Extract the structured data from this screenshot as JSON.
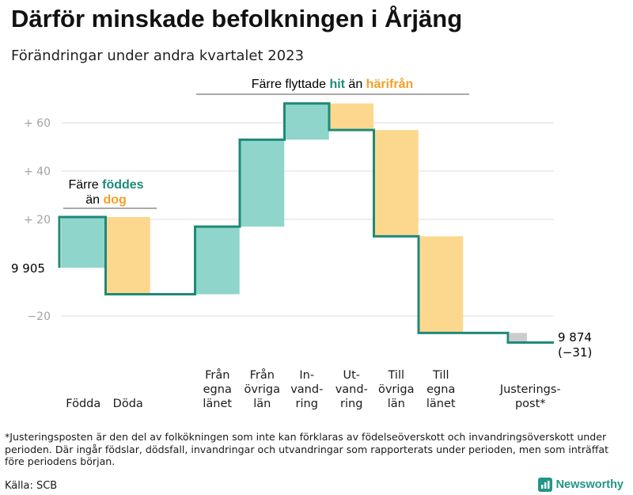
{
  "title": "Därför minskade befolkningen i Årjäng",
  "subtitle": "Förändringar under andra kvartalet 2023",
  "annotations": {
    "migration_prefix": "Färre flyttade ",
    "migration_hit": "hit",
    "migration_mid": " än ",
    "migration_harifran": "härifrån",
    "birth_line1_prefix": "Färre ",
    "birth_line1_word": "föddes",
    "birth_line2_prefix": "än ",
    "birth_line2_word": "dog"
  },
  "start_label": "9  905",
  "end_label": "9 874",
  "end_change_label": "(−31)",
  "footnote": "*Justeringsposten är den del av folkökningen som inte kan förklaras av födelseöverskott och invandringsöverskott under perioden. Där ingår födslar, dödsfall, invandringar och utvandringar som rapporterats under perioden, men som inträffat före periodens början.",
  "source": "Källa: SCB",
  "brand": "Newsworthy",
  "colors": {
    "increase_fill": "#8fd5cb",
    "decrease_fill": "#fcd88f",
    "adjustment_fill": "#cccccc",
    "step_line": "#1e8a78",
    "hit_text": "#1e8a78",
    "harifran_text": "#f4a025",
    "grid": "#dddddd",
    "tick_text": "#a3a3a3"
  },
  "chart_data": {
    "type": "waterfall",
    "start_value": 0,
    "ylim": [
      -30,
      70
    ],
    "yticks": [
      {
        "value": 60,
        "label": "+  60"
      },
      {
        "value": 40,
        "label": "+  40"
      },
      {
        "value": 20,
        "label": "+  20"
      },
      {
        "value": -20,
        "label": "−20"
      }
    ],
    "steps": [
      {
        "label": [
          "Födda"
        ],
        "change": 21,
        "kind": "increase"
      },
      {
        "label": [
          "Döda"
        ],
        "change": -32,
        "kind": "decrease"
      },
      {
        "label": [],
        "change": 0,
        "kind": "gap"
      },
      {
        "label": [
          "Från",
          "egna",
          "länet"
        ],
        "change": 28,
        "kind": "increase"
      },
      {
        "label": [
          "Från",
          "övriga",
          "län"
        ],
        "change": 36,
        "kind": "increase"
      },
      {
        "label": [
          "In-",
          "vand-",
          "ring"
        ],
        "change": 15,
        "kind": "increase"
      },
      {
        "label": [
          "Ut-",
          "vand-",
          "ring"
        ],
        "change": -11,
        "kind": "decrease"
      },
      {
        "label": [
          "Till",
          "övriga",
          "län"
        ],
        "change": -44,
        "kind": "decrease"
      },
      {
        "label": [
          "Till",
          "egna",
          "länet"
        ],
        "change": -40,
        "kind": "decrease"
      },
      {
        "label": [],
        "change": 0,
        "kind": "gap"
      },
      {
        "label": [
          "Justerings-",
          "post*"
        ],
        "change": -4,
        "kind": "adjustment"
      }
    ],
    "end_value": -31
  }
}
